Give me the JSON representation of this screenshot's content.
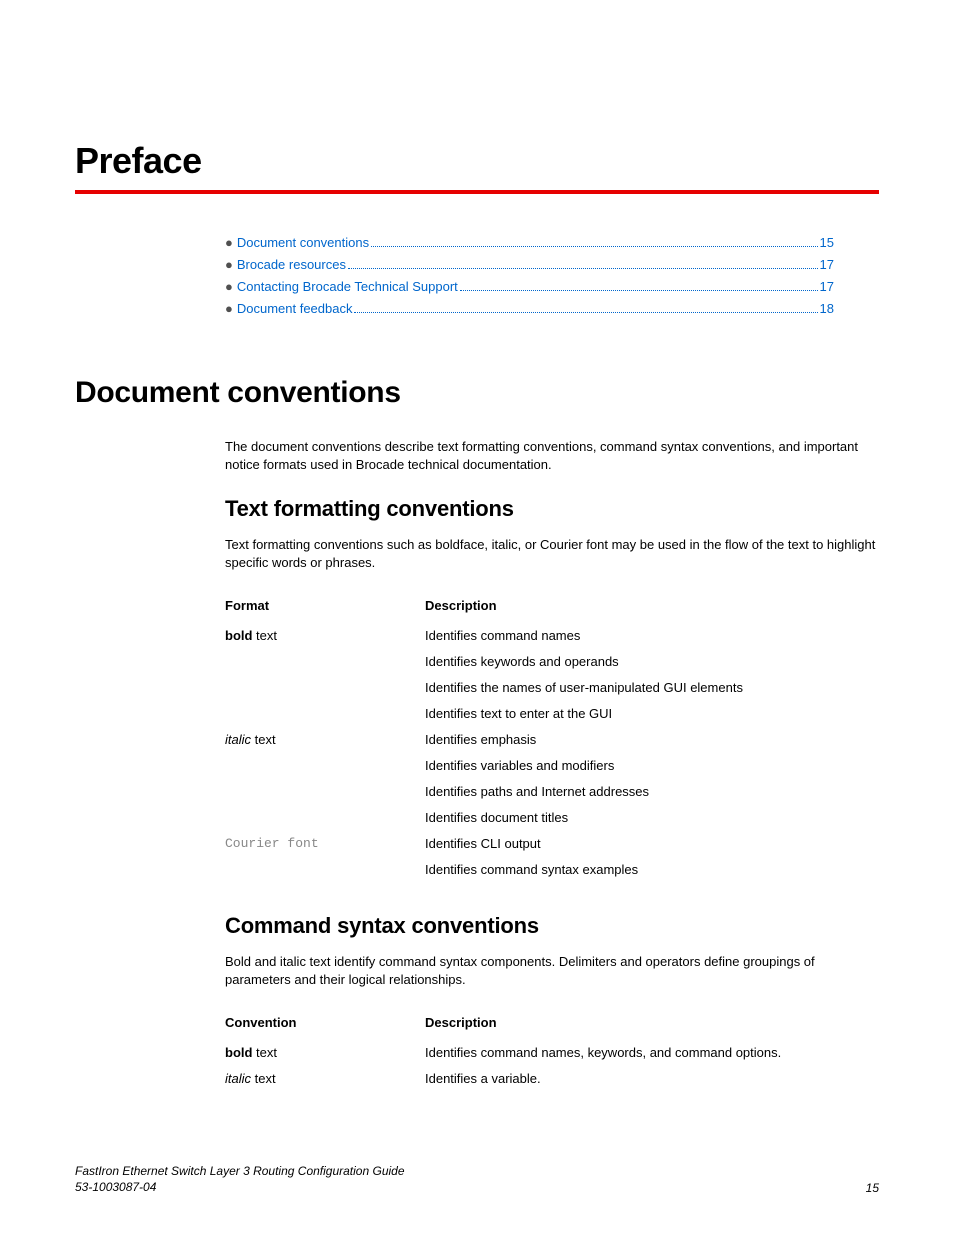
{
  "title": "Preface",
  "accent_color": "#e60000",
  "link_color": "#0066cc",
  "toc": [
    {
      "label": "Document conventions",
      "page": "15"
    },
    {
      "label": "Brocade resources",
      "page": "17"
    },
    {
      "label": "Contacting Brocade Technical Support",
      "page": "17"
    },
    {
      "label": "Document feedback",
      "page": "18"
    }
  ],
  "section1": {
    "heading": "Document conventions",
    "intro": "The document conventions describe text formatting conventions, command syntax conventions, and important notice formats used in Brocade technical documentation."
  },
  "textfmt": {
    "heading": "Text formatting conventions",
    "intro": "Text formatting conventions such as boldface, italic, or Courier font may be used in the flow of the text to highlight specific words or phrases.",
    "col1_header": "Format",
    "col2_header": "Description",
    "rows": {
      "bold_label_strong": "bold",
      "bold_label_rest": " text",
      "bold_desc1": "Identifies command names",
      "bold_desc2": "Identifies keywords and operands",
      "bold_desc3": "Identifies the names of user-manipulated GUI elements",
      "bold_desc4": "Identifies text to enter at the GUI",
      "italic_label_em": "italic",
      "italic_label_rest": " text",
      "italic_desc1": "Identifies emphasis",
      "italic_desc2": "Identifies variables and modifiers",
      "italic_desc3": "Identifies paths and Internet addresses",
      "italic_desc4": "Identifies document titles",
      "courier_label": "Courier font",
      "courier_desc1": "Identifies CLI output",
      "courier_desc2": "Identifies command syntax examples"
    }
  },
  "cmdsyn": {
    "heading": "Command syntax conventions",
    "intro": "Bold and italic text identify command syntax components. Delimiters and operators define groupings of parameters and their logical relationships.",
    "col1_header": "Convention",
    "col2_header": "Description",
    "rows": {
      "bold_label_strong": "bold",
      "bold_label_rest": " text",
      "bold_desc": "Identifies command names, keywords, and command options.",
      "italic_label_em": "italic",
      "italic_label_rest": " text",
      "italic_desc": "Identifies a variable."
    }
  },
  "footer": {
    "doc_title": "FastIron Ethernet Switch Layer 3 Routing Configuration Guide",
    "doc_number": "53-1003087-04",
    "page_number": "15"
  }
}
